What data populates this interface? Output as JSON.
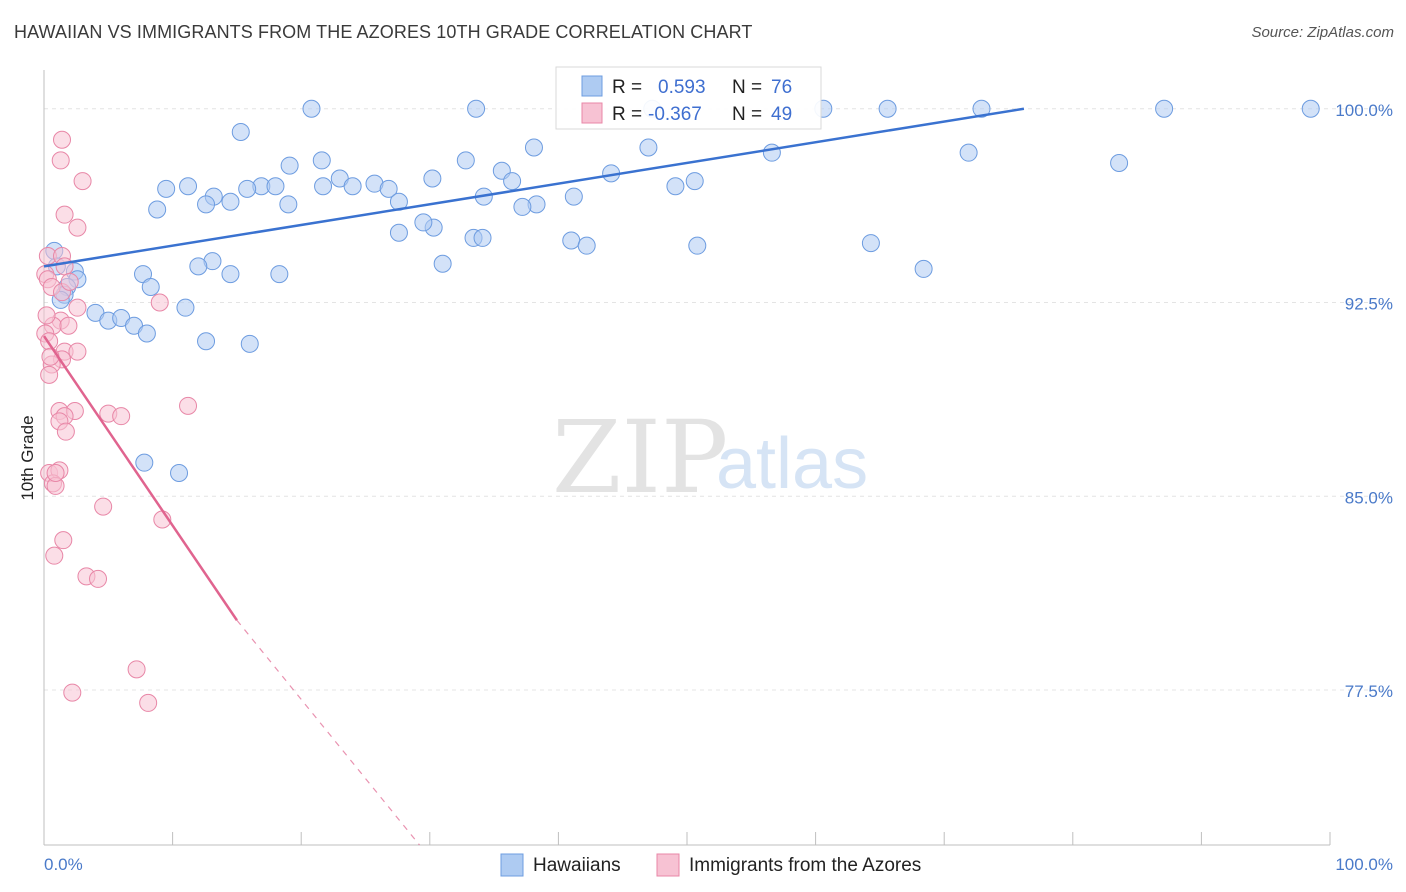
{
  "header": {
    "title": "HAWAIIAN VS IMMIGRANTS FROM THE AZORES 10TH GRADE CORRELATION CHART",
    "source": "Source: ZipAtlas.com"
  },
  "watermark": {
    "zip": "ZIP",
    "atlas": "atlas"
  },
  "colors": {
    "blue_fill": "#aecbf2",
    "blue_stroke": "#6d9ce0",
    "blue_line": "#3a72d0",
    "pink_fill": "#f7c2d3",
    "pink_stroke": "#e887a7",
    "pink_line": "#e0648f",
    "tick_label": "#4a7ac9",
    "grid": "#e4e4e4"
  },
  "legend": {
    "rows": [
      {
        "r_label": "R =",
        "r_value": "0.593",
        "n_label": "N =",
        "n_value": "76"
      },
      {
        "r_label": "R =",
        "r_value": "-0.367",
        "n_label": "N =",
        "n_value": "49"
      }
    ]
  },
  "chart_data": {
    "type": "scatter",
    "title": "HAWAIIAN VS IMMIGRANTS FROM THE AZORES 10TH GRADE CORRELATION CHART",
    "xlabel": "",
    "ylabel": "10th Grade",
    "xlim": [
      0,
      100
    ],
    "ylim": [
      71.5,
      101.5
    ],
    "x_tick_labels": [
      "0.0%",
      "100.0%"
    ],
    "y_ticks": [
      100.0,
      92.5,
      85.0,
      77.5
    ],
    "y_tick_labels": [
      "100.0%",
      "92.5%",
      "85.0%",
      "77.5%"
    ],
    "grid": true,
    "legend_position": "top-center",
    "series": [
      {
        "name": "Hawaiians",
        "r": 0.593,
        "n": 76,
        "trend": {
          "x": [
            0,
            76.2
          ],
          "y": [
            93.9,
            100.0
          ]
        },
        "points": [
          [
            20.8,
            100.0
          ],
          [
            33.6,
            100.0
          ],
          [
            47.3,
            100.0
          ],
          [
            60.6,
            100.0
          ],
          [
            65.6,
            100.0
          ],
          [
            72.9,
            100.0
          ],
          [
            87.1,
            100.0
          ],
          [
            98.5,
            100.0
          ],
          [
            15.3,
            99.1
          ],
          [
            38.1,
            98.5
          ],
          [
            47.0,
            98.5
          ],
          [
            56.6,
            98.3
          ],
          [
            71.9,
            98.3
          ],
          [
            83.6,
            97.9
          ],
          [
            19.1,
            97.8
          ],
          [
            32.8,
            98.0
          ],
          [
            21.6,
            98.0
          ],
          [
            35.6,
            97.6
          ],
          [
            23.0,
            97.3
          ],
          [
            30.2,
            97.3
          ],
          [
            36.4,
            97.2
          ],
          [
            44.1,
            97.5
          ],
          [
            50.6,
            97.2
          ],
          [
            49.1,
            97.0
          ],
          [
            25.7,
            97.1
          ],
          [
            16.9,
            97.0
          ],
          [
            21.7,
            97.0
          ],
          [
            18.0,
            97.0
          ],
          [
            26.8,
            96.9
          ],
          [
            27.6,
            96.4
          ],
          [
            24.0,
            97.0
          ],
          [
            15.8,
            96.9
          ],
          [
            13.2,
            96.6
          ],
          [
            9.5,
            96.9
          ],
          [
            8.8,
            96.1
          ],
          [
            11.2,
            97.0
          ],
          [
            12.6,
            96.3
          ],
          [
            14.5,
            96.4
          ],
          [
            19.0,
            96.3
          ],
          [
            34.2,
            96.6
          ],
          [
            41.2,
            96.6
          ],
          [
            38.3,
            96.3
          ],
          [
            37.2,
            96.2
          ],
          [
            30.3,
            95.4
          ],
          [
            33.4,
            95.0
          ],
          [
            29.5,
            95.6
          ],
          [
            34.1,
            95.0
          ],
          [
            41.0,
            94.9
          ],
          [
            42.2,
            94.7
          ],
          [
            27.6,
            95.2
          ],
          [
            31.0,
            94.0
          ],
          [
            18.3,
            93.6
          ],
          [
            13.1,
            94.1
          ],
          [
            12.0,
            93.9
          ],
          [
            7.7,
            93.6
          ],
          [
            14.5,
            93.6
          ],
          [
            8.3,
            93.1
          ],
          [
            0.8,
            94.5
          ],
          [
            1.0,
            93.9
          ],
          [
            2.4,
            93.7
          ],
          [
            2.6,
            93.4
          ],
          [
            1.8,
            93.1
          ],
          [
            1.6,
            92.8
          ],
          [
            1.3,
            92.6
          ],
          [
            11.0,
            92.3
          ],
          [
            4.0,
            92.1
          ],
          [
            5.0,
            91.8
          ],
          [
            6.0,
            91.9
          ],
          [
            7.0,
            91.6
          ],
          [
            8.0,
            91.3
          ],
          [
            12.6,
            91.0
          ],
          [
            50.8,
            94.7
          ],
          [
            64.3,
            94.8
          ],
          [
            68.4,
            93.8
          ],
          [
            16.0,
            90.9
          ],
          [
            7.8,
            86.3
          ],
          [
            10.5,
            85.9
          ]
        ]
      },
      {
        "name": "Immigrants from the Azores",
        "r": -0.367,
        "n": 49,
        "trend": {
          "x": [
            0,
            15.0
          ],
          "y": [
            91.2,
            80.2
          ]
        },
        "trend_dashed": {
          "x": [
            15.0,
            29.2
          ],
          "y": [
            80.2,
            71.5
          ]
        },
        "points": [
          [
            1.4,
            98.8
          ],
          [
            1.3,
            98.0
          ],
          [
            3.0,
            97.2
          ],
          [
            1.6,
            95.9
          ],
          [
            2.6,
            95.4
          ],
          [
            0.3,
            94.3
          ],
          [
            1.4,
            94.3
          ],
          [
            1.6,
            93.9
          ],
          [
            0.1,
            93.6
          ],
          [
            0.3,
            93.4
          ],
          [
            0.6,
            93.1
          ],
          [
            1.4,
            92.9
          ],
          [
            2.0,
            93.3
          ],
          [
            9.0,
            92.5
          ],
          [
            2.6,
            92.3
          ],
          [
            1.3,
            91.8
          ],
          [
            0.7,
            91.6
          ],
          [
            0.1,
            91.3
          ],
          [
            0.4,
            91.0
          ],
          [
            1.6,
            90.6
          ],
          [
            2.6,
            90.6
          ],
          [
            1.4,
            90.3
          ],
          [
            0.6,
            90.1
          ],
          [
            0.4,
            89.7
          ],
          [
            1.2,
            88.3
          ],
          [
            2.4,
            88.3
          ],
          [
            1.6,
            88.1
          ],
          [
            1.2,
            87.9
          ],
          [
            5.0,
            88.2
          ],
          [
            6.0,
            88.1
          ],
          [
            11.2,
            88.5
          ],
          [
            1.7,
            87.5
          ],
          [
            0.4,
            85.9
          ],
          [
            1.2,
            86.0
          ],
          [
            0.7,
            85.5
          ],
          [
            0.9,
            85.4
          ],
          [
            4.6,
            84.6
          ],
          [
            9.2,
            84.1
          ],
          [
            1.5,
            83.3
          ],
          [
            0.8,
            82.7
          ],
          [
            3.3,
            81.9
          ],
          [
            4.2,
            81.8
          ],
          [
            7.2,
            78.3
          ],
          [
            2.2,
            77.4
          ],
          [
            8.1,
            77.0
          ],
          [
            0.2,
            92.0
          ],
          [
            0.5,
            90.4
          ],
          [
            0.9,
            85.9
          ],
          [
            1.9,
            91.6
          ]
        ]
      }
    ]
  },
  "bottom_legend": {
    "items": [
      {
        "label": "Hawaiians"
      },
      {
        "label": "Immigrants from the Azores"
      }
    ]
  }
}
